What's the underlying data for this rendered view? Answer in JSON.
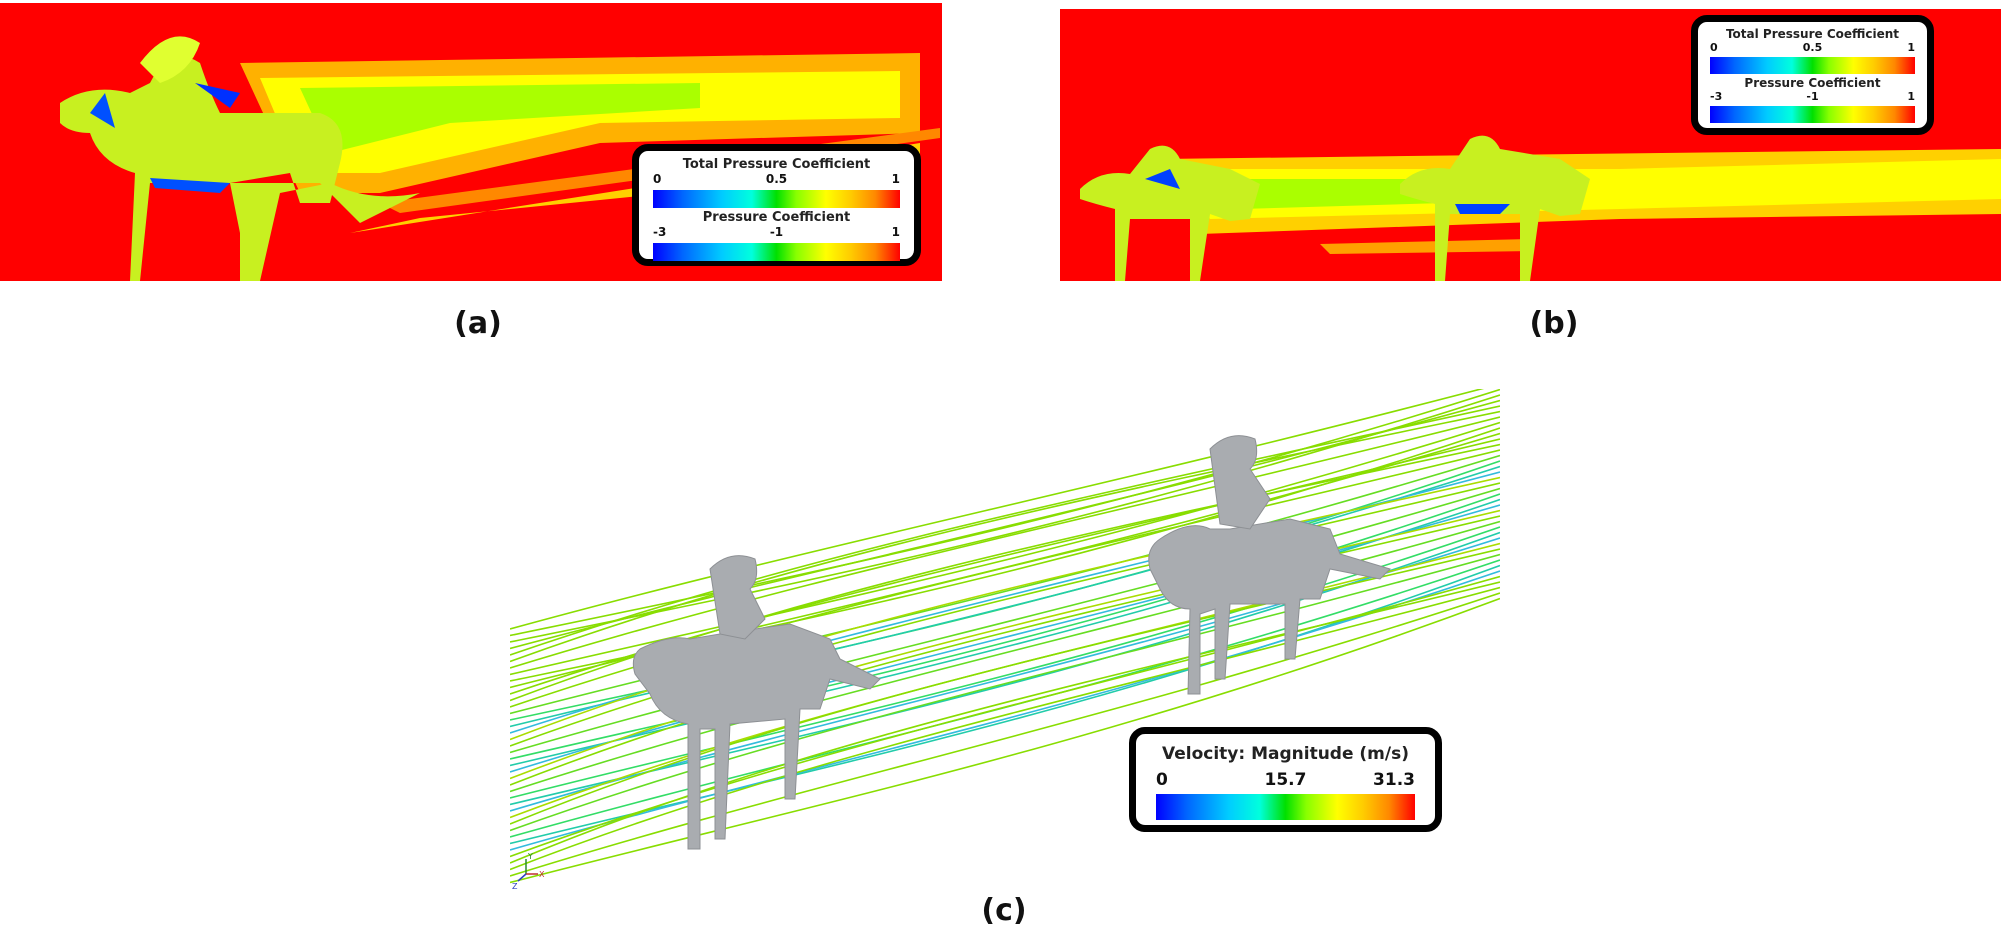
{
  "panels": {
    "a": {
      "caption": "(a)",
      "legend": {
        "total_pressure": {
          "title": "Total Pressure Coefficient",
          "ticks": [
            "0",
            "0.5",
            "1"
          ]
        },
        "pressure": {
          "title": "Pressure Coefficient",
          "ticks": [
            "-3",
            "-1",
            "1"
          ]
        }
      }
    },
    "b": {
      "caption": "(b)",
      "legend": {
        "total_pressure": {
          "title": "Total Pressure Coefficient",
          "ticks": [
            "0",
            "0.5",
            "1"
          ]
        },
        "pressure": {
          "title": "Pressure Coefficient",
          "ticks": [
            "-3",
            "-1",
            "1"
          ]
        }
      }
    },
    "c": {
      "caption": "(c)",
      "legend": {
        "title": "Velocity: Magnitude (m/s)",
        "ticks": [
          "0",
          "15.7",
          "31.3"
        ]
      },
      "axis_triad": [
        "X",
        "Y",
        "Z"
      ]
    }
  },
  "colors": {
    "freestream": "#ff0000",
    "wake_high": "#ffff00",
    "wake_mid": "#88ff00",
    "wake_low": "#00ccff",
    "body": "#a9acb0",
    "streamline": "#66dd22"
  }
}
